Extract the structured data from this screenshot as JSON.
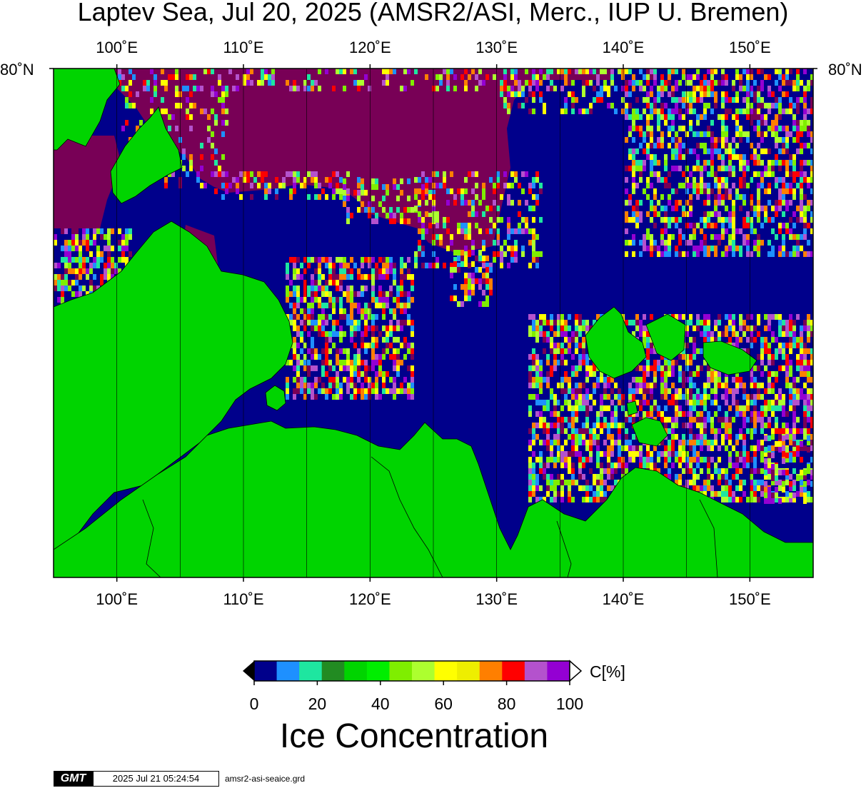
{
  "title": "Laptev Sea, Jul 20, 2025 (AMSR2/ASI, Merc., IUP U. Bremen)",
  "lon_ticks": [
    "100˚E",
    "110˚E",
    "120˚E",
    "130˚E",
    "140˚E",
    "150˚E"
  ],
  "lon_values": [
    100,
    110,
    120,
    130,
    140,
    150
  ],
  "lon_range": [
    95,
    155
  ],
  "lat_label": "80˚N",
  "colors": {
    "open_water": "#00008b",
    "land": "#00d400",
    "ice_high": "#780056",
    "frame": "#000000"
  },
  "colorbar": {
    "colors": [
      "#00008b",
      "#1e90ff",
      "#1ee6a0",
      "#228b22",
      "#00d400",
      "#00ee00",
      "#7fee00",
      "#adff2f",
      "#ffff00",
      "#eeee00",
      "#ff7f00",
      "#ff0000",
      "#b452cd",
      "#9400d3"
    ],
    "labels": [
      "0",
      "20",
      "40",
      "60",
      "80",
      "100"
    ],
    "unit": "C[%]",
    "title": "Ice Concentration"
  },
  "footer": {
    "logo": "GMT",
    "timestamp": "2025 Jul 21 05:24:54",
    "filename": "amsr2-asi-seaice.grd"
  }
}
